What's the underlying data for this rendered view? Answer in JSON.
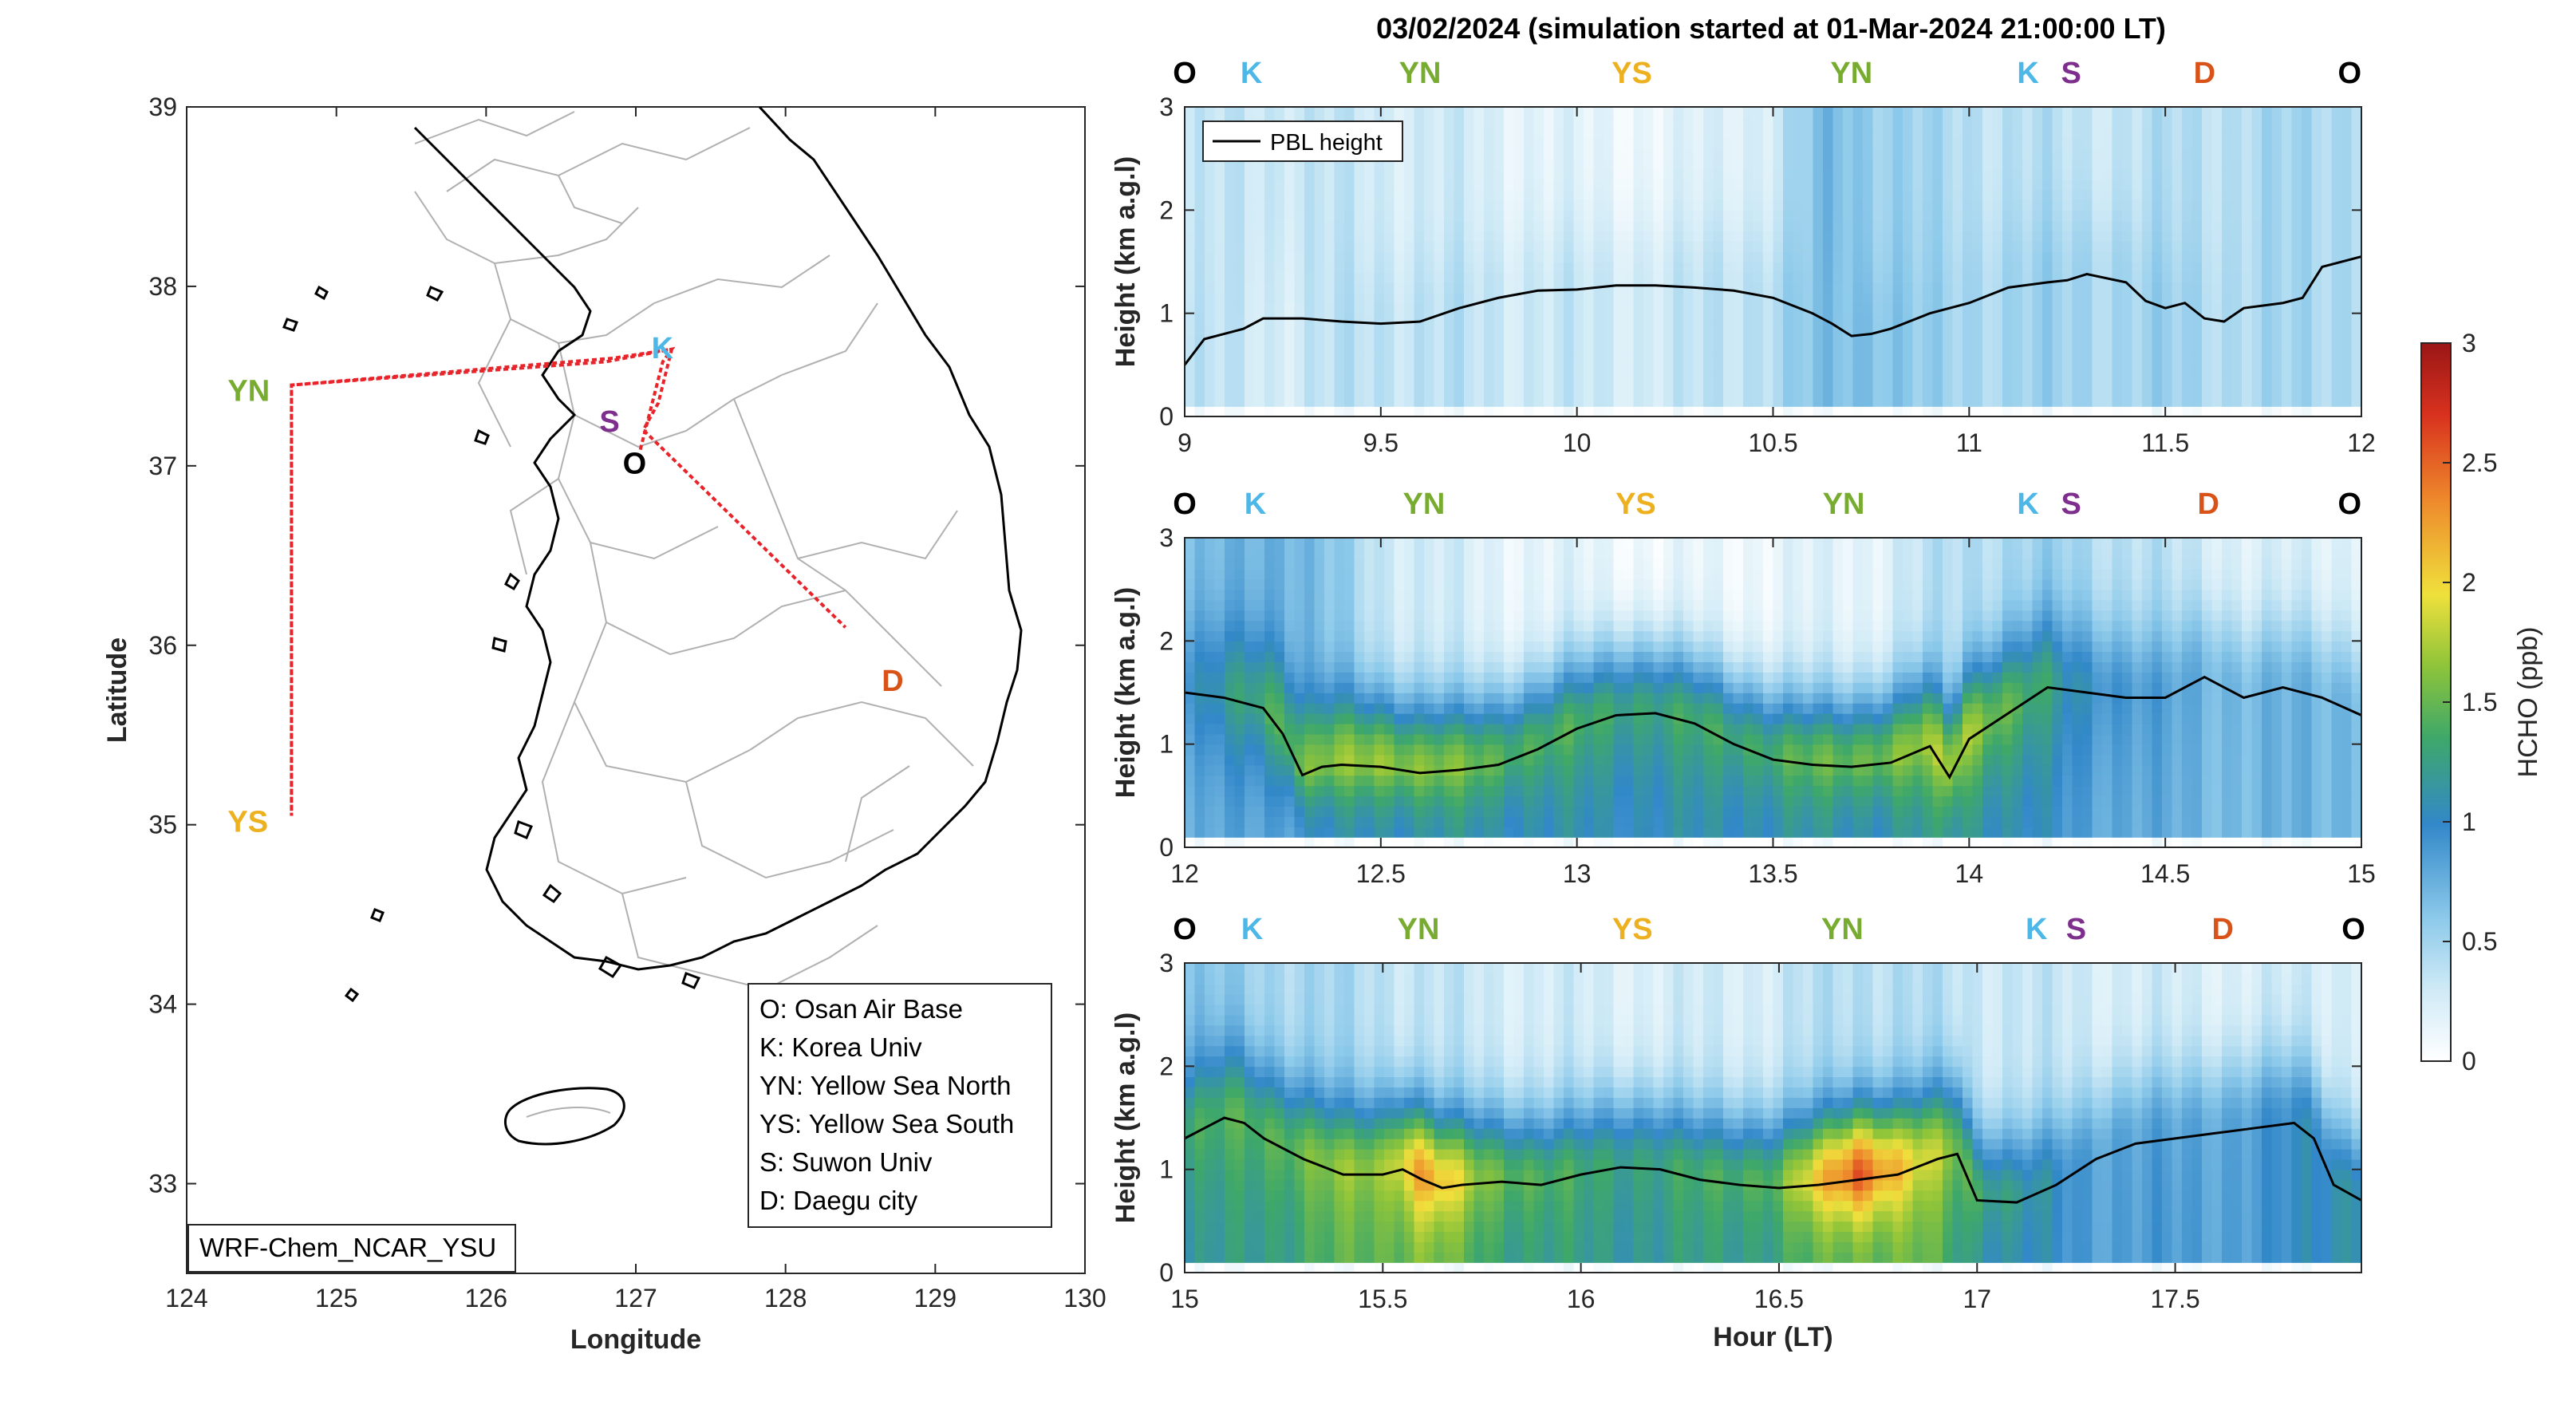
{
  "figure_title": "03/02/2024 (simulation started at 01-Mar-2024 21:00:00 LT)",
  "colors": {
    "O": "#000000",
    "K": "#4DB8E8",
    "YN": "#77AC30",
    "YS": "#EDB120",
    "S": "#7E2F8E",
    "D": "#D95319",
    "flight_track": "#E8232A",
    "pbl_line": "#000000"
  },
  "map": {
    "xlabel": "Longitude",
    "ylabel": "Latitude",
    "xticks": [
      "124",
      "125",
      "126",
      "127",
      "128",
      "129",
      "130"
    ],
    "yticks": [
      "33",
      "34",
      "35",
      "36",
      "37",
      "38",
      "39"
    ],
    "xlim": [
      124,
      130
    ],
    "ylim": [
      32.5,
      39
    ],
    "model_label": "WRF-Chem_NCAR_YSU",
    "locations": [
      {
        "code": "O",
        "name": "Osan Air Base",
        "lon": 127.03,
        "lat": 37.09
      },
      {
        "code": "K",
        "name": "Korea Univ",
        "lon": 127.03,
        "lat": 37.59
      },
      {
        "code": "YN",
        "name": "Yellow Sea North",
        "lon": 124.7,
        "lat": 37.45
      },
      {
        "code": "YS",
        "name": "Yellow Sea South",
        "lon": 124.7,
        "lat": 35.05
      },
      {
        "code": "S",
        "name": "Suwon Univ",
        "lon": 126.97,
        "lat": 37.27
      },
      {
        "code": "D",
        "name": "Daegu city",
        "lon": 128.6,
        "lat": 35.87
      }
    ],
    "legend": [
      "O: Osan Air Base",
      "K: Korea Univ",
      "YN: Yellow Sea North",
      "YS: Yellow Sea South",
      "S: Suwon Univ",
      "D: Daegu city"
    ],
    "flight_track": [
      [
        127.03,
        37.09
      ],
      [
        127.18,
        37.58
      ],
      [
        127.24,
        37.65
      ],
      [
        126.8,
        37.58
      ],
      [
        124.7,
        37.45
      ],
      [
        124.7,
        35.05
      ],
      [
        124.7,
        37.45
      ],
      [
        126.85,
        37.6
      ],
      [
        127.24,
        37.65
      ],
      [
        127.15,
        37.35
      ],
      [
        127.05,
        37.2
      ],
      [
        128.4,
        36.1
      ]
    ]
  },
  "chart_data": [
    {
      "type": "heatmap",
      "panel": "curtain-1",
      "xlim": [
        9,
        12
      ],
      "ylim": [
        0,
        3
      ],
      "xticks": [
        "9",
        "9.5",
        "10",
        "10.5",
        "11",
        "11.5",
        "12"
      ],
      "yticks": [
        "0",
        "1",
        "2",
        "3"
      ],
      "xlabel": "",
      "ylabel": "Height (km a.g.l)",
      "location_labels": [
        {
          "code": "O",
          "t": 9.0
        },
        {
          "code": "K",
          "t": 9.17
        },
        {
          "code": "YN",
          "t": 9.6
        },
        {
          "code": "YS",
          "t": 10.14
        },
        {
          "code": "YN",
          "t": 10.7
        },
        {
          "code": "K",
          "t": 11.15
        },
        {
          "code": "S",
          "t": 11.26
        },
        {
          "code": "D",
          "t": 11.6
        },
        {
          "code": "O",
          "t": 11.97
        }
      ],
      "legend": "PBL height",
      "pbl_line": {
        "x": [
          9.0,
          9.05,
          9.1,
          9.15,
          9.2,
          9.3,
          9.4,
          9.5,
          9.6,
          9.7,
          9.8,
          9.9,
          10.0,
          10.1,
          10.2,
          10.3,
          10.4,
          10.5,
          10.6,
          10.65,
          10.7,
          10.75,
          10.8,
          10.9,
          11.0,
          11.1,
          11.2,
          11.25,
          11.3,
          11.4,
          11.45,
          11.5,
          11.55,
          11.6,
          11.65,
          11.7,
          11.8,
          11.85,
          11.9,
          12.0
        ],
        "y": [
          0.5,
          0.75,
          0.8,
          0.85,
          0.95,
          0.95,
          0.92,
          0.9,
          0.92,
          1.05,
          1.15,
          1.22,
          1.23,
          1.27,
          1.27,
          1.25,
          1.22,
          1.15,
          1.0,
          0.9,
          0.78,
          0.8,
          0.85,
          1.0,
          1.1,
          1.25,
          1.3,
          1.32,
          1.38,
          1.3,
          1.12,
          1.05,
          1.1,
          0.95,
          0.92,
          1.05,
          1.1,
          1.15,
          1.45,
          1.55
        ]
      },
      "hcho_profile": {
        "x": [
          9.0,
          9.25,
          9.5,
          9.75,
          10.0,
          10.25,
          10.5,
          10.65,
          10.75,
          10.9,
          11.1,
          11.3,
          11.5,
          11.75,
          12.0
        ],
        "near_surface_ppb": [
          0.35,
          0.3,
          0.4,
          0.35,
          0.3,
          0.3,
          0.45,
          0.65,
          0.7,
          0.5,
          0.5,
          0.5,
          0.5,
          0.45,
          0.5
        ],
        "aloft_ppb": [
          0.3,
          0.35,
          0.3,
          0.25,
          0.15,
          0.15,
          0.3,
          0.7,
          0.6,
          0.45,
          0.4,
          0.35,
          0.4,
          0.45,
          0.5
        ]
      }
    },
    {
      "type": "heatmap",
      "panel": "curtain-2",
      "xlim": [
        12,
        15
      ],
      "ylim": [
        0,
        3
      ],
      "xticks": [
        "12",
        "12.5",
        "13",
        "13.5",
        "14",
        "14.5",
        "15"
      ],
      "yticks": [
        "0",
        "1",
        "2",
        "3"
      ],
      "xlabel": "",
      "ylabel": "Height (km a.g.l)",
      "location_labels": [
        {
          "code": "O",
          "t": 12.0
        },
        {
          "code": "K",
          "t": 12.18
        },
        {
          "code": "YN",
          "t": 12.61
        },
        {
          "code": "YS",
          "t": 13.15
        },
        {
          "code": "YN",
          "t": 13.68
        },
        {
          "code": "K",
          "t": 14.15
        },
        {
          "code": "S",
          "t": 14.26
        },
        {
          "code": "D",
          "t": 14.61
        },
        {
          "code": "O",
          "t": 14.97
        }
      ],
      "pbl_line": {
        "x": [
          12.0,
          12.1,
          12.2,
          12.25,
          12.3,
          12.35,
          12.4,
          12.5,
          12.6,
          12.7,
          12.8,
          12.9,
          13.0,
          13.1,
          13.2,
          13.3,
          13.4,
          13.5,
          13.6,
          13.7,
          13.8,
          13.9,
          13.95,
          14.0,
          14.1,
          14.2,
          14.3,
          14.4,
          14.5,
          14.6,
          14.7,
          14.8,
          14.9,
          15.0
        ],
        "y": [
          1.5,
          1.45,
          1.35,
          1.1,
          0.7,
          0.78,
          0.8,
          0.78,
          0.72,
          0.75,
          0.8,
          0.95,
          1.15,
          1.28,
          1.3,
          1.2,
          1.0,
          0.85,
          0.8,
          0.78,
          0.82,
          0.98,
          0.68,
          1.05,
          1.3,
          1.55,
          1.5,
          1.45,
          1.45,
          1.65,
          1.45,
          1.55,
          1.45,
          1.28
        ]
      },
      "hcho_profile": {
        "x": [
          12.0,
          12.25,
          12.5,
          12.75,
          13.0,
          13.25,
          13.5,
          13.75,
          14.0,
          14.25,
          14.5,
          14.75,
          15.0
        ],
        "near_surface_ppb": [
          0.7,
          0.9,
          1.1,
          1.1,
          1.05,
          1.05,
          1.1,
          1.1,
          1.2,
          0.9,
          0.75,
          0.7,
          0.75
        ],
        "pbl_top_ppb": [
          0.9,
          1.5,
          1.7,
          1.5,
          1.35,
          1.3,
          1.4,
          1.55,
          1.75,
          1.1,
          0.8,
          0.7,
          0.75
        ],
        "aloft_ppb": [
          0.6,
          0.8,
          0.35,
          0.2,
          0.15,
          0.1,
          0.15,
          0.2,
          0.45,
          0.5,
          0.35,
          0.2,
          0.25
        ]
      }
    },
    {
      "type": "heatmap",
      "panel": "curtain-3",
      "xlim": [
        15,
        17.97
      ],
      "ylim": [
        0,
        3
      ],
      "xticks": [
        "15",
        "15.5",
        "16",
        "16.5",
        "17",
        "17.5"
      ],
      "yticks": [
        "0",
        "1",
        "2",
        "3"
      ],
      "xlabel": "Hour (LT)",
      "ylabel": "Height (km a.g.l)",
      "location_labels": [
        {
          "code": "O",
          "t": 15.0
        },
        {
          "code": "K",
          "t": 15.17
        },
        {
          "code": "YN",
          "t": 15.59
        },
        {
          "code": "YS",
          "t": 16.13
        },
        {
          "code": "YN",
          "t": 16.66
        },
        {
          "code": "K",
          "t": 17.15
        },
        {
          "code": "S",
          "t": 17.25
        },
        {
          "code": "D",
          "t": 17.62
        },
        {
          "code": "O",
          "t": 17.95
        }
      ],
      "pbl_line": {
        "x": [
          15.0,
          15.05,
          15.1,
          15.15,
          15.2,
          15.3,
          15.4,
          15.5,
          15.55,
          15.6,
          15.65,
          15.7,
          15.8,
          15.9,
          16.0,
          16.1,
          16.2,
          16.3,
          16.4,
          16.5,
          16.6,
          16.7,
          16.8,
          16.9,
          16.95,
          17.0,
          17.1,
          17.2,
          17.3,
          17.4,
          17.5,
          17.6,
          17.7,
          17.8,
          17.85,
          17.9,
          17.97
        ],
        "y": [
          1.3,
          1.4,
          1.5,
          1.45,
          1.3,
          1.1,
          0.95,
          0.95,
          1.0,
          0.9,
          0.82,
          0.85,
          0.88,
          0.85,
          0.95,
          1.02,
          1.0,
          0.9,
          0.85,
          0.82,
          0.85,
          0.9,
          0.95,
          1.1,
          1.15,
          0.7,
          0.68,
          0.85,
          1.1,
          1.25,
          1.3,
          1.35,
          1.4,
          1.45,
          1.3,
          0.85,
          0.7
        ]
      },
      "hcho_profile": {
        "x": [
          15.0,
          15.25,
          15.5,
          15.6,
          15.75,
          16.0,
          16.25,
          16.5,
          16.7,
          16.85,
          17.0,
          17.25,
          17.5,
          17.75,
          17.97
        ],
        "near_surface_ppb": [
          1.1,
          1.3,
          1.5,
          1.6,
          1.35,
          1.2,
          1.2,
          1.3,
          1.55,
          1.5,
          1.2,
          0.9,
          0.85,
          0.9,
          1.2
        ],
        "pbl_top_ppb": [
          1.3,
          1.5,
          1.7,
          2.3,
          1.6,
          1.3,
          1.3,
          1.5,
          2.6,
          1.9,
          1.4,
          0.9,
          0.8,
          0.9,
          1.2
        ],
        "aloft_ppb": [
          0.6,
          0.5,
          0.4,
          0.35,
          0.3,
          0.25,
          0.25,
          0.3,
          0.45,
          0.4,
          0.35,
          0.3,
          0.25,
          0.25,
          0.3
        ]
      }
    }
  ],
  "colorbar": {
    "label": "HCHO (ppb)",
    "range": [
      0,
      3
    ],
    "ticks": [
      "0",
      "0.5",
      "1",
      "1.5",
      "2",
      "2.5",
      "3"
    ],
    "colormap": [
      "#ffffff",
      "#a9dbf0",
      "#3288c9",
      "#45b043",
      "#f2e03a",
      "#e8612b",
      "#9a1616"
    ]
  }
}
